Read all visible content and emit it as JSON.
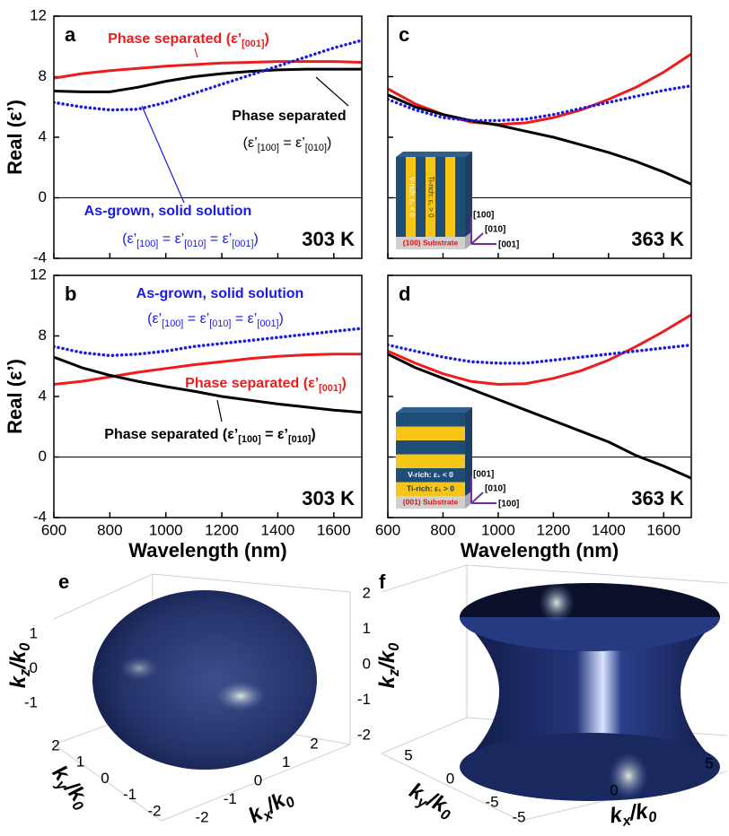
{
  "chart_data": [
    {
      "type": "line",
      "panel_label": "a",
      "temperature": "303 K",
      "ylabel": "Real (ε’)",
      "x": [
        600,
        700,
        800,
        900,
        1000,
        1100,
        1200,
        1300,
        1400,
        1500,
        1600,
        1700
      ],
      "xlim": [
        600,
        1700
      ],
      "ylim": [
        -4,
        12
      ],
      "xticks": [
        600,
        800,
        1000,
        1200,
        1400,
        1600
      ],
      "yticks": [
        -4,
        0,
        4,
        8,
        12
      ],
      "xtick_labels": false,
      "ytick_labels": true,
      "series": [
        {
          "color": "#ee1c1c",
          "style": "solid",
          "values": [
            7.9,
            8.2,
            8.4,
            8.55,
            8.7,
            8.8,
            8.9,
            8.95,
            9.0,
            9.0,
            9.0,
            8.95
          ]
        },
        {
          "color": "#000000",
          "style": "solid",
          "values": [
            7.05,
            7.0,
            7.0,
            7.3,
            7.7,
            8.0,
            8.2,
            8.35,
            8.45,
            8.5,
            8.5,
            8.5
          ]
        },
        {
          "color": "#1a1ae6",
          "style": "dotted",
          "values": [
            6.3,
            6.0,
            5.8,
            5.85,
            6.3,
            6.9,
            7.5,
            8.1,
            8.7,
            9.3,
            9.9,
            10.4
          ]
        }
      ],
      "annotations": [
        {
          "text": [
            "Phase separated (ε’",
            "[001]",
            ")"
          ],
          "color": "#ee1c1c",
          "bold": true
        },
        {
          "text": [
            "Phase separated"
          ],
          "color": "#000000",
          "bold": true
        },
        {
          "text": [
            "(ε’",
            "[100]",
            " = ε’",
            "[010]",
            ")"
          ],
          "color": "#000000",
          "bold": false
        },
        {
          "text": [
            "As-grown, solid solution"
          ],
          "color": "#1a1ae6",
          "bold": true
        },
        {
          "text": [
            "(ε’",
            "[100]",
            " = ε’",
            "[010]",
            " = ε’",
            "[001]",
            ")"
          ],
          "color": "#1a1ae6",
          "bold": false
        }
      ]
    },
    {
      "type": "line",
      "panel_label": "c",
      "temperature": "363 K",
      "x": [
        600,
        700,
        800,
        900,
        1000,
        1100,
        1200,
        1300,
        1400,
        1500,
        1600,
        1700
      ],
      "xlim": [
        600,
        1700
      ],
      "ylim": [
        -4,
        12
      ],
      "xticks": [
        600,
        800,
        1000,
        1200,
        1400,
        1600
      ],
      "yticks": [
        -4,
        0,
        4,
        8,
        12
      ],
      "xtick_labels": false,
      "ytick_labels": false,
      "series": [
        {
          "color": "#ee1c1c",
          "style": "solid",
          "values": [
            7.2,
            6.2,
            5.5,
            5.0,
            4.85,
            4.95,
            5.3,
            5.8,
            6.5,
            7.3,
            8.3,
            9.5
          ]
        },
        {
          "color": "#000000",
          "style": "solid",
          "values": [
            6.8,
            6.0,
            5.5,
            5.1,
            4.8,
            4.4,
            4.0,
            3.5,
            3.0,
            2.4,
            1.7,
            0.9
          ]
        },
        {
          "color": "#1a1ae6",
          "style": "dotted",
          "values": [
            6.5,
            5.8,
            5.3,
            5.1,
            5.1,
            5.2,
            5.5,
            5.9,
            6.3,
            6.7,
            7.1,
            7.4
          ]
        }
      ],
      "annotations": [],
      "inset": {
        "orientation": "vertical",
        "layers": [
          "V-rich: ε₁ < 0",
          "Ti-rich: ε₁ > 0"
        ],
        "substrate": "(100) Substrate",
        "axes": [
          "[100]",
          "[010]",
          "[001]"
        ]
      }
    },
    {
      "type": "line",
      "panel_label": "b",
      "temperature": "303 K",
      "ylabel": "Real (ε’)",
      "xlabel": "Wavelength (nm)",
      "x": [
        600,
        700,
        800,
        900,
        1000,
        1100,
        1200,
        1300,
        1400,
        1500,
        1600,
        1700
      ],
      "xlim": [
        600,
        1700
      ],
      "ylim": [
        -4,
        12
      ],
      "xticks": [
        600,
        800,
        1000,
        1200,
        1400,
        1600
      ],
      "yticks": [
        -4,
        0,
        4,
        8,
        12
      ],
      "xtick_labels": true,
      "ytick_labels": true,
      "series": [
        {
          "color": "#1a1ae6",
          "style": "dotted",
          "values": [
            7.3,
            6.9,
            6.7,
            6.8,
            7.0,
            7.3,
            7.5,
            7.7,
            7.9,
            8.1,
            8.3,
            8.5
          ]
        },
        {
          "color": "#ee1c1c",
          "style": "solid",
          "values": [
            4.8,
            5.0,
            5.3,
            5.6,
            5.85,
            6.1,
            6.3,
            6.5,
            6.65,
            6.75,
            6.8,
            6.8
          ]
        },
        {
          "color": "#000000",
          "style": "solid",
          "values": [
            6.6,
            5.9,
            5.4,
            5.0,
            4.65,
            4.35,
            4.0,
            3.75,
            3.5,
            3.3,
            3.1,
            2.95
          ]
        }
      ],
      "annotations": [
        {
          "text": [
            "As-grown, solid solution"
          ],
          "color": "#1a1ae6",
          "bold": true
        },
        {
          "text": [
            "(ε’",
            "[100]",
            " = ε’",
            "[010]",
            " = ε’",
            "[001]",
            ")"
          ],
          "color": "#1a1ae6",
          "bold": false
        },
        {
          "text": [
            "Phase separated (ε’",
            "[001]",
            ")"
          ],
          "color": "#ee1c1c",
          "bold": true
        },
        {
          "text": [
            "Phase separated (ε’",
            "[100]",
            " = ε’",
            "[010]",
            ")"
          ],
          "color": "#000000",
          "bold": true
        }
      ]
    },
    {
      "type": "line",
      "panel_label": "d",
      "temperature": "363 K",
      "xlabel": "Wavelength (nm)",
      "x": [
        600,
        700,
        800,
        900,
        1000,
        1100,
        1200,
        1300,
        1400,
        1500,
        1600,
        1700
      ],
      "xlim": [
        600,
        1700
      ],
      "ylim": [
        -4,
        12
      ],
      "xticks": [
        600,
        800,
        1000,
        1200,
        1400,
        1600
      ],
      "yticks": [
        -4,
        0,
        4,
        8,
        12
      ],
      "xtick_labels": true,
      "ytick_labels": false,
      "series": [
        {
          "color": "#ee1c1c",
          "style": "solid",
          "values": [
            7.0,
            6.2,
            5.5,
            5.0,
            4.8,
            4.85,
            5.2,
            5.7,
            6.4,
            7.3,
            8.3,
            9.4
          ]
        },
        {
          "color": "#1a1ae6",
          "style": "dotted",
          "values": [
            7.4,
            7.0,
            6.6,
            6.3,
            6.2,
            6.2,
            6.4,
            6.6,
            6.8,
            7.0,
            7.2,
            7.4
          ]
        },
        {
          "color": "#000000",
          "style": "solid",
          "values": [
            6.8,
            5.9,
            5.2,
            4.5,
            3.8,
            3.1,
            2.4,
            1.7,
            1.0,
            0.1,
            -0.6,
            -1.4
          ]
        }
      ],
      "annotations": [],
      "inset": {
        "orientation": "horizontal",
        "layers": [
          "V-rich: ε₁ < 0",
          "Ti-rich: ε₁ > 0"
        ],
        "substrate": "(001) Substrate",
        "axes": [
          "[001]",
          "[010]",
          "[100]"
        ]
      }
    },
    {
      "type": "surface3d",
      "panel_label": "e",
      "shape": "ellipsoid",
      "xticks": [
        -2,
        -1,
        0,
        1,
        2
      ],
      "yticks": [
        -2,
        -1,
        0,
        1,
        2
      ],
      "zticks": [
        -1,
        0,
        1
      ],
      "xlabel": [
        "k",
        "x",
        "/k",
        "0"
      ],
      "ylabel": [
        "k",
        "y",
        "/k",
        "0"
      ],
      "zlabel": [
        "k",
        "z",
        "/k",
        "0"
      ]
    },
    {
      "type": "surface3d",
      "panel_label": "f",
      "shape": "hyperboloid",
      "xticks": [
        -5,
        0,
        5
      ],
      "yticks": [
        -5,
        0,
        5
      ],
      "zticks": [
        -2,
        -1,
        0,
        1,
        2
      ],
      "xlabel": [
        "k",
        "x",
        "/k",
        "0"
      ],
      "ylabel": [
        "k",
        "y",
        "/k",
        "0"
      ],
      "zlabel": [
        "k",
        "z",
        "/k",
        "0"
      ]
    }
  ]
}
